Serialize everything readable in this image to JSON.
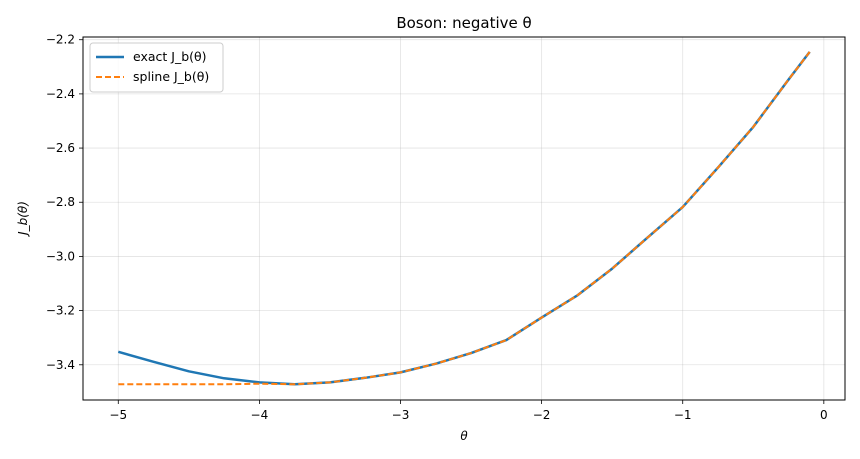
{
  "chart_data": {
    "type": "line",
    "title": "Boson: negative θ",
    "xlabel": "θ",
    "ylabel": "J_b(θ)",
    "xlim": [
      -5.25,
      0.15
    ],
    "ylim": [
      -3.53,
      -2.19
    ],
    "grid": true,
    "legend_position": "top-left",
    "x_ticks": [
      -5,
      -4,
      -3,
      -2,
      -1,
      0
    ],
    "x_tick_labels": [
      "−5",
      "−4",
      "−3",
      "−2",
      "−1",
      "0"
    ],
    "y_ticks": [
      -2.2,
      -2.4,
      -2.6,
      -2.8,
      -3.0,
      -3.2,
      -3.4
    ],
    "y_tick_labels": [
      "−2.2",
      "−2.4",
      "−2.6",
      "−2.8",
      "−3.0",
      "−3.2",
      "−3.4"
    ],
    "series": [
      {
        "name": "exact J_b(θ)",
        "color": "#1f77b4",
        "style": "solid",
        "x": [
          -5.0,
          -4.75,
          -4.5,
          -4.25,
          -4.0,
          -3.75,
          -3.5,
          -3.25,
          -3.0,
          -2.75,
          -2.5,
          -2.25,
          -2.0,
          -1.75,
          -1.5,
          -1.25,
          -1.0,
          -0.75,
          -0.5,
          -0.25,
          -0.1
        ],
        "y": [
          -3.352,
          -3.389,
          -3.424,
          -3.45,
          -3.465,
          -3.472,
          -3.465,
          -3.448,
          -3.428,
          -3.396,
          -3.357,
          -3.309,
          -3.226,
          -3.145,
          -3.045,
          -2.931,
          -2.818,
          -2.672,
          -2.522,
          -2.347,
          -2.245
        ]
      },
      {
        "name": "spline J_b(θ)",
        "color": "#ff7f0e",
        "style": "dashed",
        "x": [
          -5.0,
          -4.75,
          -4.5,
          -4.25,
          -4.0,
          -3.75,
          -3.5,
          -3.25,
          -3.0,
          -2.75,
          -2.5,
          -2.25,
          -2.0,
          -1.75,
          -1.5,
          -1.25,
          -1.0,
          -0.75,
          -0.5,
          -0.25,
          -0.1
        ],
        "y": [
          -3.472,
          -3.472,
          -3.472,
          -3.472,
          -3.47,
          -3.472,
          -3.465,
          -3.448,
          -3.428,
          -3.396,
          -3.357,
          -3.309,
          -3.226,
          -3.145,
          -3.045,
          -2.931,
          -2.818,
          -2.672,
          -2.522,
          -2.347,
          -2.245
        ]
      }
    ]
  }
}
